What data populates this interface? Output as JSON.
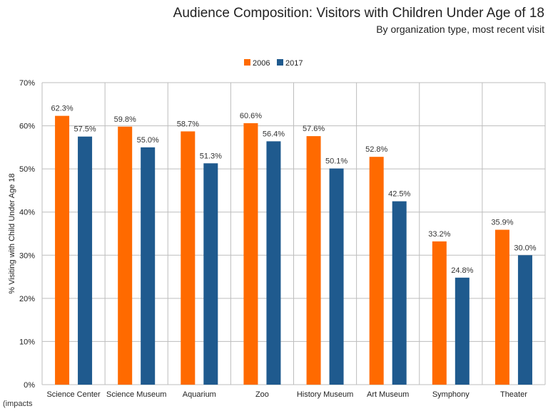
{
  "header": {
    "title": "Audience Composition: Visitors with Children Under Age of 18",
    "subtitle": "By organization type, most recent visit"
  },
  "footer": {
    "brand": "(impacts"
  },
  "colors": {
    "series_2006": "#FF6A00",
    "series_2017": "#1F5A8E",
    "grid": "#bdbdbd"
  },
  "chart_data": {
    "type": "bar",
    "categories": [
      "Science Center",
      "Science Museum",
      "Aquarium",
      "Zoo",
      "History Museum",
      "Art Museum",
      "Symphony",
      "Theater"
    ],
    "series": [
      {
        "name": "2006",
        "values": [
          62.3,
          59.8,
          58.7,
          60.6,
          57.6,
          52.8,
          33.2,
          35.9
        ],
        "labels": [
          "62.3%",
          "59.8%",
          "58.7%",
          "60.6%",
          "57.6%",
          "52.8%",
          "33.2%",
          "35.9%"
        ]
      },
      {
        "name": "2017",
        "values": [
          57.5,
          55.0,
          51.3,
          56.4,
          50.1,
          42.5,
          24.8,
          30.0
        ],
        "labels": [
          "57.5%",
          "55.0%",
          "51.3%",
          "56.4%",
          "50.1%",
          "42.5%",
          "24.8%",
          "30.0%"
        ]
      }
    ],
    "ylabel": "% Visiting with Child Under Age 18",
    "xlabel": "",
    "ylim": [
      0,
      70
    ],
    "yticks": [
      0,
      10,
      20,
      30,
      40,
      50,
      60,
      70
    ],
    "ytick_labels": [
      "0%",
      "10%",
      "20%",
      "30%",
      "40%",
      "50%",
      "60%",
      "70%"
    ],
    "grid": true,
    "legend_position": "top-center"
  }
}
